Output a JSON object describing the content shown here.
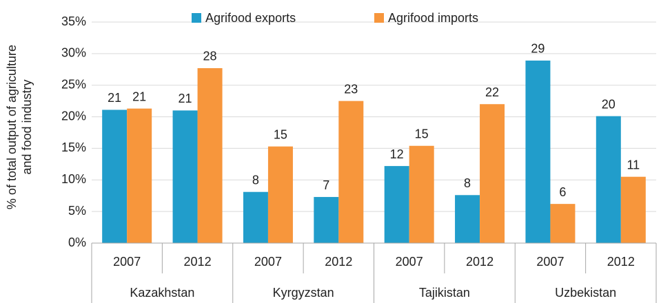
{
  "chart_data": {
    "type": "bar",
    "ylabel": [
      "% of total output of agriculture",
      "and food industry"
    ],
    "groups": [
      {
        "name": "Kazakhstan",
        "categories": [
          "2007",
          "2012"
        ]
      },
      {
        "name": "Kyrgyzstan",
        "categories": [
          "2007",
          "2012"
        ]
      },
      {
        "name": "Tajikistan",
        "categories": [
          "2007",
          "2012"
        ]
      },
      {
        "name": "Uzbekistan",
        "categories": [
          "2007",
          "2012"
        ]
      }
    ],
    "series": [
      {
        "name": "Agrifood exports",
        "color": "#219dcb",
        "values": [
          21.1,
          21.0,
          8.1,
          7.3,
          12.2,
          7.6,
          28.9,
          20.1
        ],
        "value_labels": [
          "21",
          "21",
          "8",
          "7",
          "12",
          "8",
          "29",
          "20"
        ]
      },
      {
        "name": "Agrifood imports",
        "color": "#f7963c",
        "values": [
          21.3,
          27.7,
          15.3,
          22.5,
          15.4,
          22.0,
          6.2,
          10.5
        ],
        "value_labels": [
          "21",
          "28",
          "15",
          "23",
          "15",
          "22",
          "6",
          "11"
        ]
      }
    ],
    "ylim": [
      0,
      35
    ],
    "yticks": [
      {
        "value": 0,
        "label": "0%"
      },
      {
        "value": 5,
        "label": "5%"
      },
      {
        "value": 10,
        "label": "10%"
      },
      {
        "value": 15,
        "label": "15%"
      },
      {
        "value": 20,
        "label": "20%"
      },
      {
        "value": 25,
        "label": "25%"
      },
      {
        "value": 30,
        "label": "30%"
      },
      {
        "value": 35,
        "label": "35%"
      }
    ],
    "grid": true,
    "legend": "top"
  }
}
